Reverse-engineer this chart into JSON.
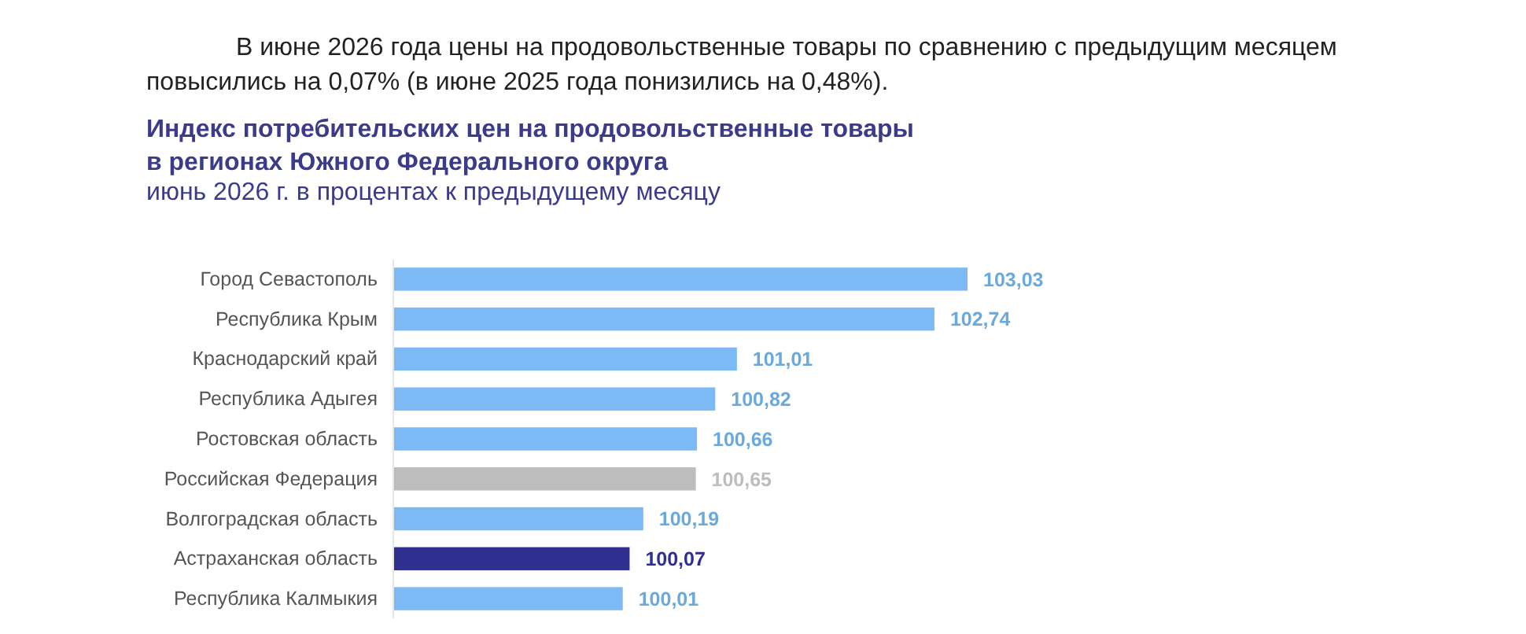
{
  "chart_data": {
    "type": "bar",
    "orientation": "horizontal",
    "title": "Индекс потребительских цен на продовольственные товары\nв регионах Южного Федерального округа",
    "subtitle": "июнь 2026 г. в процентах к предыдущему месяцу",
    "annotations": [
      "В июне 2026 года цены на продовольственные товары по сравнению с предыдущим месяцем повысились на 0,07% (в июне 2025 года понизились на 0,48%)."
    ],
    "categories": [
      "Город Севастополь",
      "Республика Крым",
      "Краснодарский край",
      "Республика Адыгея",
      "Ростовская область",
      "Российская Федерация",
      "Волгоградская область",
      "Астраханская область",
      "Республика Калмыкия"
    ],
    "values": [
      103.03,
      102.74,
      101.01,
      100.82,
      100.66,
      100.65,
      100.19,
      100.07,
      100.01
    ],
    "colors": [
      "#7db9f5",
      "#7db9f5",
      "#7db9f5",
      "#7db9f5",
      "#7db9f5",
      "#bdbdbd",
      "#7db9f5",
      "#2f2f8f",
      "#7db9f5"
    ],
    "value_labels": [
      "103,03",
      "102,74",
      "101,01",
      "100,82",
      "100,66",
      "100,65",
      "100,19",
      "100,07",
      "100,01"
    ],
    "xlim": [
      98,
      103.03
    ],
    "tick_labels": "y"
  }
}
